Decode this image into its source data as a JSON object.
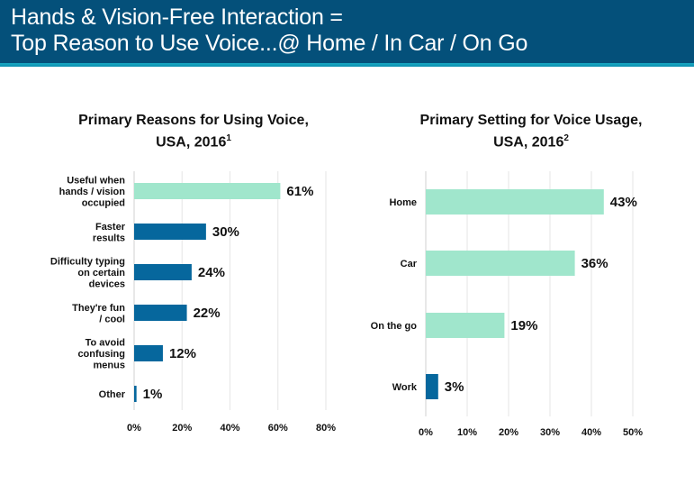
{
  "header": {
    "title_line1": "Hands & Vision-Free Interaction =",
    "title_line2": "Top Reason to Use Voice...@ Home / In Car / On Go"
  },
  "colors": {
    "header_bg": "#04507a",
    "header_accent": "#17a9c4",
    "bar_highlight": "#a0e6cc",
    "bar_default": "#06679d",
    "gridline": "#e6e6e6"
  },
  "chart_data": [
    {
      "type": "bar",
      "orientation": "horizontal",
      "title": "Primary Reasons for Using Voice,",
      "title_line2": "USA, 2016",
      "title_footnote": "1",
      "categories": [
        [
          "Useful when",
          "hands / vision",
          "occupied"
        ],
        [
          "Faster",
          "results"
        ],
        [
          "Difficulty typing",
          "on certain",
          "devices"
        ],
        [
          "They're fun",
          "/ cool"
        ],
        [
          "To avoid",
          "confusing",
          "menus"
        ],
        [
          "Other"
        ]
      ],
      "values": [
        61,
        30,
        24,
        22,
        12,
        1
      ],
      "value_labels": [
        "61%",
        "30%",
        "24%",
        "22%",
        "12%",
        "1%"
      ],
      "highlight": [
        true,
        false,
        false,
        false,
        false,
        false
      ],
      "xlim": [
        0,
        80
      ],
      "xticks": [
        0,
        20,
        40,
        60,
        80
      ],
      "xtick_labels": [
        "0%",
        "20%",
        "40%",
        "60%",
        "80%"
      ],
      "xlabel": "",
      "ylabel": "",
      "grid": true
    },
    {
      "type": "bar",
      "orientation": "horizontal",
      "title": "Primary Setting for Voice Usage,",
      "title_line2": "USA, 2016",
      "title_footnote": "2",
      "categories": [
        [
          "Home"
        ],
        [
          "Car"
        ],
        [
          "On the go"
        ],
        [
          "Work"
        ]
      ],
      "values": [
        43,
        36,
        19,
        3
      ],
      "value_labels": [
        "43%",
        "36%",
        "19%",
        "3%"
      ],
      "highlight": [
        true,
        true,
        true,
        false
      ],
      "xlim": [
        0,
        50
      ],
      "xticks": [
        0,
        10,
        20,
        30,
        40,
        50
      ],
      "xtick_labels": [
        "0%",
        "10%",
        "20%",
        "30%",
        "40%",
        "50%"
      ],
      "xlabel": "",
      "ylabel": "",
      "grid": true
    }
  ]
}
